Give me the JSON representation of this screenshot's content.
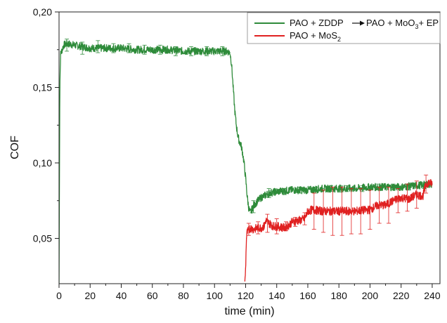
{
  "chart_data": {
    "type": "line",
    "xlabel": "time (min)",
    "ylabel": "COF",
    "xlim": [
      0,
      245
    ],
    "ylim": [
      0.02,
      0.2
    ],
    "x_ticks": [
      0,
      20,
      40,
      60,
      80,
      100,
      120,
      140,
      160,
      180,
      200,
      220,
      240
    ],
    "x_tick_labels": [
      "0",
      "20",
      "40",
      "60",
      "80",
      "100",
      "120",
      "140",
      "160",
      "180",
      "200",
      "220",
      "240"
    ],
    "y_ticks": [
      0.05,
      0.1,
      0.15,
      0.2
    ],
    "y_tick_labels": [
      "0,05",
      "0,10",
      "0,15",
      "0,20"
    ],
    "grid": false,
    "legend_position": "top-right",
    "series": [
      {
        "name": "PAO + ZDDP ",
        "name_arrow_target": "PAO + MoO",
        "name_subscript": "3",
        "name_suffix": "+ EP",
        "color": "#2e8b3a",
        "points": [
          [
            0,
            0.02
          ],
          [
            0.5,
            0.15
          ],
          [
            1,
            0.172
          ],
          [
            3,
            0.178
          ],
          [
            5,
            0.179
          ],
          [
            10,
            0.178
          ],
          [
            20,
            0.176
          ],
          [
            30,
            0.176
          ],
          [
            40,
            0.176
          ],
          [
            50,
            0.175
          ],
          [
            60,
            0.175
          ],
          [
            70,
            0.175
          ],
          [
            80,
            0.174
          ],
          [
            90,
            0.174
          ],
          [
            100,
            0.174
          ],
          [
            108,
            0.174
          ],
          [
            110,
            0.173
          ],
          [
            111,
            0.165
          ],
          [
            112,
            0.15
          ],
          [
            113,
            0.135
          ],
          [
            114,
            0.125
          ],
          [
            115,
            0.118
          ],
          [
            116,
            0.114
          ],
          [
            117,
            0.112
          ],
          [
            118,
            0.107
          ],
          [
            119,
            0.1
          ],
          [
            120,
            0.09
          ],
          [
            121,
            0.078
          ],
          [
            122,
            0.07
          ],
          [
            123,
            0.067
          ],
          [
            124,
            0.069
          ],
          [
            125,
            0.071
          ],
          [
            127,
            0.074
          ],
          [
            130,
            0.077
          ],
          [
            135,
            0.08
          ],
          [
            140,
            0.081
          ],
          [
            150,
            0.082
          ],
          [
            160,
            0.082
          ],
          [
            170,
            0.083
          ],
          [
            180,
            0.083
          ],
          [
            190,
            0.083
          ],
          [
            200,
            0.084
          ],
          [
            210,
            0.084
          ],
          [
            220,
            0.084
          ],
          [
            230,
            0.085
          ],
          [
            240,
            0.086
          ]
        ],
        "error_bars": [
          [
            5,
            0.178,
            0.004
          ],
          [
            15,
            0.176,
            0.004
          ],
          [
            25,
            0.177,
            0.004
          ],
          [
            35,
            0.176,
            0.003
          ],
          [
            45,
            0.176,
            0.003
          ],
          [
            55,
            0.175,
            0.003
          ],
          [
            65,
            0.175,
            0.003
          ],
          [
            75,
            0.174,
            0.003
          ],
          [
            85,
            0.174,
            0.003
          ],
          [
            95,
            0.174,
            0.003
          ],
          [
            105,
            0.174,
            0.003
          ],
          [
            125,
            0.071,
            0.004
          ],
          [
            135,
            0.08,
            0.003
          ],
          [
            145,
            0.081,
            0.002
          ],
          [
            155,
            0.082,
            0.002
          ],
          [
            165,
            0.082,
            0.002
          ],
          [
            175,
            0.083,
            0.002
          ],
          [
            185,
            0.083,
            0.002
          ],
          [
            195,
            0.083,
            0.002
          ],
          [
            205,
            0.084,
            0.002
          ],
          [
            215,
            0.084,
            0.002
          ],
          [
            225,
            0.084,
            0.002
          ],
          [
            235,
            0.085,
            0.002
          ]
        ]
      },
      {
        "name": "PAO + MoS",
        "name_subscript": "2",
        "color": "#e02020",
        "points": [
          [
            119.5,
            0.02
          ],
          [
            120,
            0.03
          ],
          [
            120.5,
            0.05
          ],
          [
            121,
            0.054
          ],
          [
            123,
            0.057
          ],
          [
            125,
            0.056
          ],
          [
            128,
            0.057
          ],
          [
            130,
            0.057
          ],
          [
            132,
            0.058
          ],
          [
            133,
            0.062
          ],
          [
            135,
            0.06
          ],
          [
            138,
            0.058
          ],
          [
            140,
            0.058
          ],
          [
            145,
            0.057
          ],
          [
            148,
            0.059
          ],
          [
            150,
            0.061
          ],
          [
            155,
            0.062
          ],
          [
            158,
            0.063
          ],
          [
            160,
            0.068
          ],
          [
            163,
            0.069
          ],
          [
            170,
            0.068
          ],
          [
            180,
            0.068
          ],
          [
            190,
            0.068
          ],
          [
            200,
            0.069
          ],
          [
            205,
            0.072
          ],
          [
            210,
            0.072
          ],
          [
            215,
            0.075
          ],
          [
            220,
            0.077
          ],
          [
            225,
            0.076
          ],
          [
            230,
            0.079
          ],
          [
            234,
            0.078
          ],
          [
            236,
            0.086
          ],
          [
            238,
            0.087
          ],
          [
            240,
            0.086
          ]
        ],
        "error_bars": [
          [
            122,
            0.056,
            0.004
          ],
          [
            128,
            0.057,
            0.004
          ],
          [
            134,
            0.06,
            0.006
          ],
          [
            140,
            0.058,
            0.005
          ],
          [
            146,
            0.058,
            0.003
          ],
          [
            152,
            0.061,
            0.003
          ],
          [
            158,
            0.063,
            0.004
          ],
          [
            164,
            0.068,
            0.012
          ],
          [
            170,
            0.068,
            0.014
          ],
          [
            176,
            0.068,
            0.016
          ],
          [
            182,
            0.068,
            0.016
          ],
          [
            188,
            0.068,
            0.015
          ],
          [
            194,
            0.068,
            0.015
          ],
          [
            200,
            0.069,
            0.013
          ],
          [
            206,
            0.072,
            0.012
          ],
          [
            212,
            0.072,
            0.012
          ],
          [
            218,
            0.075,
            0.008
          ],
          [
            224,
            0.077,
            0.009
          ],
          [
            230,
            0.079,
            0.009
          ],
          [
            236,
            0.086,
            0.006
          ]
        ]
      }
    ]
  }
}
